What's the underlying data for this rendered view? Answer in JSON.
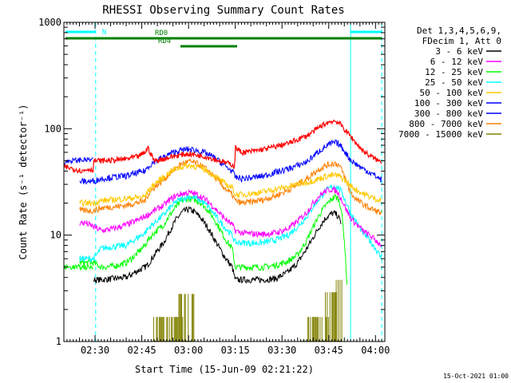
{
  "chart_data": {
    "type": "line",
    "title": "RHESSI Observing Summary Count Rates",
    "xlabel": "Start Time (15-Jun-09 02:21:22)",
    "ylabel": "Count Rate (s⁻¹ detector⁻¹)",
    "y_scale": "log",
    "ylim": [
      1,
      1000
    ],
    "xlim_minutes": [
      140,
      243
    ],
    "x_ticks": [
      {
        "label": "02:30",
        "minutes": 150
      },
      {
        "label": "02:45",
        "minutes": 165
      },
      {
        "label": "03:00",
        "minutes": 180
      },
      {
        "label": "03:15",
        "minutes": 195
      },
      {
        "label": "03:30",
        "minutes": 210
      },
      {
        "label": "03:45",
        "minutes": 225
      },
      {
        "label": "04:00",
        "minutes": 240
      }
    ],
    "y_ticks": [
      {
        "label": "1",
        "value": 1
      },
      {
        "label": "10",
        "value": 10
      },
      {
        "label": "100",
        "value": 100
      },
      {
        "label": "1000",
        "value": 1000
      }
    ],
    "legend_header": [
      "Det 1,3,4,5,6,9,",
      "FDecim 1, Att 0"
    ],
    "legend_position": "right",
    "footer_date": "15-Oct-2021 01:00",
    "night_markers": [
      {
        "label": "N",
        "start": 140.5,
        "end": 150.2,
        "color": "#00ffff"
      },
      {
        "label": "",
        "start": 232.0,
        "end": 242.0,
        "color": "#00ffff"
      }
    ],
    "radiation_segments": [
      {
        "label": "RD0",
        "start": 140.5,
        "end": 194.6,
        "level": 1,
        "color": "#008000"
      },
      {
        "label": "",
        "start": 194.6,
        "end": 242.0,
        "level": 1,
        "color": "#008000"
      },
      {
        "label": "RD4",
        "start": 177.4,
        "end": 195.6,
        "level": 2,
        "color": "#008000"
      }
    ],
    "vlines": [
      {
        "minutes": 150.2,
        "color": "#00ffff",
        "style": "dashed"
      },
      {
        "minutes": 232.0,
        "color": "#00ffff",
        "style": "solid"
      },
      {
        "minutes": 242.0,
        "color": "#00ffff",
        "style": "dashed"
      }
    ],
    "x_minutes": [
      140,
      145,
      147,
      149.5,
      152,
      156,
      160,
      163,
      166,
      167,
      169,
      172,
      174,
      176,
      178,
      180,
      182,
      184,
      186,
      188,
      190,
      192,
      194,
      195,
      197,
      200,
      204,
      208,
      212,
      215,
      218,
      220,
      222,
      224,
      226,
      227,
      228,
      229,
      230,
      231,
      232,
      234,
      236,
      238,
      240,
      242
    ],
    "series": [
      {
        "name": "3 - 6 keV",
        "color": "#000000",
        "values": [
          null,
          null,
          null,
          3.8,
          3.8,
          3.9,
          4,
          4.5,
          5,
          5.3,
          6.5,
          8.5,
          11,
          14,
          16.5,
          17.5,
          16.5,
          14.5,
          12,
          9.5,
          7.5,
          6,
          5,
          3.8,
          3.8,
          3.8,
          3.8,
          3.9,
          4.5,
          5.5,
          7.5,
          9.5,
          12,
          14.5,
          16,
          16,
          15,
          13,
          null,
          null,
          null,
          null,
          null,
          null,
          null,
          null
        ]
      },
      {
        "name": "6 - 12 keV",
        "color": "#ff00ff",
        "values": [
          null,
          13,
          13,
          12,
          11,
          11.5,
          12.5,
          13.5,
          15,
          15.5,
          17,
          19,
          21.5,
          23.5,
          24.5,
          25,
          24.5,
          23,
          21,
          18.5,
          16,
          14,
          12.5,
          11,
          10.5,
          10.3,
          10.2,
          10.5,
          11.5,
          13.5,
          16.5,
          20,
          23.5,
          26,
          27,
          26.5,
          25,
          22,
          19,
          16.5,
          14.5,
          12.5,
          11,
          10,
          9,
          8
        ]
      },
      {
        "name": "12 - 25 keV",
        "color": "#00ff00",
        "values": [
          null,
          5.5,
          5.5,
          5.5,
          5,
          5.1,
          5.5,
          6.5,
          8,
          9,
          10.5,
          12.5,
          15.5,
          18.5,
          21,
          22,
          21.5,
          20,
          17.5,
          14.5,
          11.5,
          9,
          7.5,
          5,
          5,
          5,
          5,
          5.2,
          5.7,
          6.5,
          9,
          12,
          15.5,
          19,
          22,
          23,
          22,
          18,
          9,
          3,
          null,
          null,
          null,
          null,
          null,
          null
        ]
      },
      {
        "name": "25 - 50 keV",
        "color": "#00ffff",
        "values": [
          null,
          6,
          6,
          6,
          7.5,
          7.8,
          8,
          9.2,
          10.5,
          11.5,
          13,
          15.5,
          18,
          20.5,
          22,
          23,
          22.5,
          21,
          19,
          16,
          13.5,
          11.5,
          10,
          8.5,
          8.5,
          8.4,
          8.5,
          9,
          10,
          12,
          15,
          18.5,
          22,
          26,
          28.5,
          29,
          28,
          26,
          22,
          19,
          16,
          13,
          10.5,
          9,
          7.5,
          6
        ]
      },
      {
        "name": "50 - 100 keV",
        "color": "#ffc800",
        "values": [
          null,
          20,
          20,
          20,
          21,
          21.5,
          22,
          22.5,
          23,
          26,
          30,
          35,
          39,
          42,
          44,
          45,
          44.5,
          43,
          40,
          37,
          33,
          30,
          28,
          24,
          24,
          24.5,
          25.5,
          27,
          28.5,
          30,
          31.5,
          32.5,
          34,
          35.5,
          36.5,
          36.5,
          36,
          35,
          33,
          31,
          29,
          26.5,
          24.5,
          23,
          22,
          21
        ]
      },
      {
        "name": "100 - 300 keV",
        "color": "#0000ff",
        "values": [
          null,
          32,
          32,
          32,
          34,
          35,
          36,
          38,
          40,
          44,
          49,
          54,
          58,
          61,
          63,
          64,
          63,
          61,
          58,
          54,
          49,
          44,
          40,
          35,
          34,
          34.5,
          36,
          39,
          42,
          45,
          49,
          55,
          62,
          68,
          73,
          74,
          72,
          68,
          62,
          56,
          51,
          46,
          42,
          39,
          36,
          33
        ]
      },
      {
        "name": "300 - 800 keV",
        "color": "#0000ff",
        "values": [
          null,
          null,
          null,
          null,
          null,
          null,
          null,
          null,
          null,
          null,
          null,
          null,
          null,
          null,
          null,
          null,
          null,
          null,
          null,
          null,
          null,
          null,
          null,
          null,
          null,
          null,
          null,
          null,
          null,
          null,
          null,
          null,
          null,
          null,
          null,
          null,
          null,
          null,
          null,
          null,
          null,
          null,
          null,
          null,
          null,
          null
        ]
      },
      {
        "name": "800 - 7000 keV",
        "color": "#ff8000",
        "values": [
          null,
          17,
          17,
          17,
          18,
          18.5,
          19,
          20,
          21,
          24,
          28,
          33,
          38,
          43,
          47,
          49,
          48,
          45,
          41,
          36,
          31,
          27,
          24,
          21,
          20,
          20.5,
          21.5,
          23.5,
          26.5,
          30,
          34,
          38,
          42,
          45,
          47,
          47.5,
          46,
          42,
          36,
          30,
          25,
          21.5,
          19.5,
          18,
          17,
          16
        ]
      },
      {
        "name": "7000 - 15000 keV",
        "color": "#808000",
        "values": [
          null,
          null,
          null,
          null,
          null,
          null,
          null,
          null,
          null,
          null,
          null,
          null,
          null,
          null,
          null,
          null,
          null,
          null,
          null,
          null,
          null,
          null,
          null,
          null,
          null,
          null,
          null,
          null,
          null,
          null,
          null,
          null,
          null,
          null,
          null,
          null,
          null,
          null,
          null,
          null,
          null,
          null,
          null,
          null,
          null,
          null
        ]
      }
    ],
    "extra_lines": [
      {
        "series": "3 - 6 keV",
        "x_minutes": [
          140,
          143,
          145,
          147,
          149.5
        ],
        "values": [
          null,
          null,
          null,
          null,
          3.8
        ]
      },
      {
        "series": "12 - 25 keV",
        "x_minutes": [
          140,
          142,
          144,
          146,
          148,
          149.5
        ],
        "values": [
          5,
          5,
          5,
          5,
          5,
          5
        ]
      },
      {
        "series": "100 - 300 keV",
        "x_minutes": [
          140,
          142,
          144,
          146,
          148,
          149.5
        ],
        "values": [
          48,
          50,
          50.5,
          51,
          51,
          51
        ]
      }
    ],
    "red_series": {
      "name": "3 - 6 keV (red top)",
      "color": "#ff0000",
      "x_minutes": [
        140,
        143,
        146,
        148,
        149.4,
        149.6,
        152,
        156,
        160,
        164,
        166,
        167,
        169,
        172,
        175,
        178,
        180,
        182,
        185,
        188,
        191,
        194,
        194.8,
        195,
        197,
        200,
        204,
        208,
        212,
        215,
        218,
        220,
        222,
        224,
        226,
        227,
        228,
        229,
        230,
        232,
        234,
        236,
        238,
        240,
        242
      ],
      "values": [
        44,
        42,
        40,
        42,
        41,
        50,
        50,
        50.5,
        52,
        55,
        60,
        66,
        50,
        52,
        55,
        57,
        58,
        57,
        55,
        52,
        49,
        46,
        44,
        67,
        60,
        61,
        64,
        68,
        73,
        79,
        86,
        94,
        103,
        112,
        118,
        118,
        115,
        108,
        99,
        85,
        72,
        62,
        56,
        52,
        48
      ]
    },
    "olive_blocks": [
      {
        "start": 168.5,
        "end": 178.8,
        "level": 1.7
      },
      {
        "start": 176.0,
        "end": 182.0,
        "level": 2.8
      },
      {
        "start": 216.5,
        "end": 225.5,
        "level": 1.7
      },
      {
        "start": 223.0,
        "end": 228.5,
        "level": 2.9
      },
      {
        "start": 226.8,
        "end": 229.5,
        "level": 3.8
      }
    ]
  }
}
